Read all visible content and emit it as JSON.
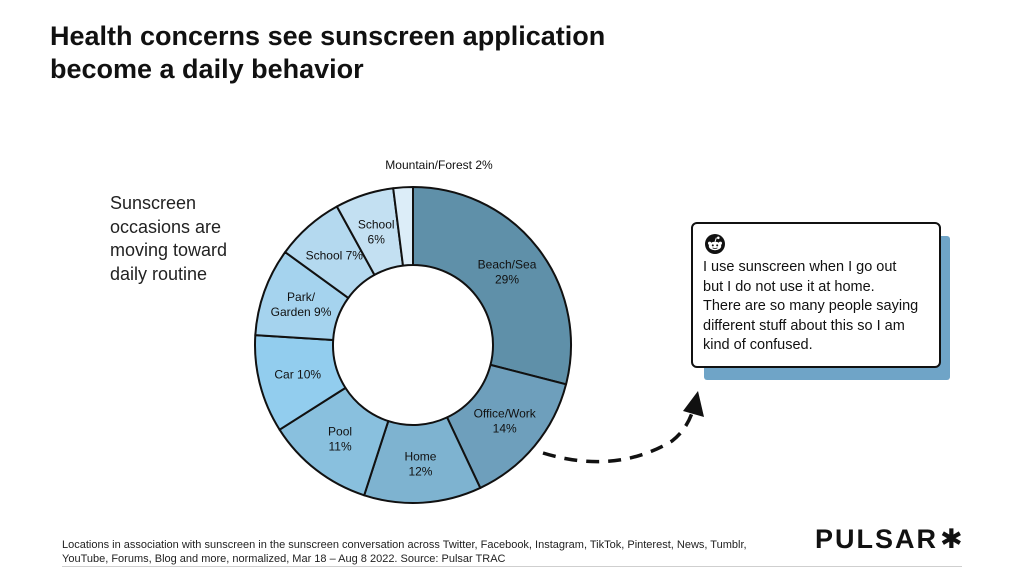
{
  "title": {
    "line1": "Health concerns see sunscreen application",
    "line2": "become a daily behavior"
  },
  "side_text": [
    "Sunscreen",
    "occasions are",
    "moving toward",
    "daily routine"
  ],
  "callout": {
    "icon": "reddit-icon",
    "lines": [
      "I use sunscreen when I go out",
      "but I do not use it at home.",
      "There are so many people saying",
      "different stuff about this so I am",
      "kind of confused."
    ]
  },
  "footnote": {
    "lines": [
      "Locations in association with sunscreen in the sunscreen conversation across Twitter, Facebook, Instagram, TikTok, Pinterest, News, Tumblr,",
      "YouTube, Forums, Blog and more, normalized, Mar 18 – Aug 8 2022. Source: Pulsar TRAC"
    ]
  },
  "logo": {
    "text": "PULSAR",
    "mark": "✱"
  },
  "chart_data": {
    "type": "pie",
    "title": "",
    "unit": "%",
    "slices": [
      {
        "label": "Beach/Sea",
        "value": 29,
        "label_lines": [
          "Beach/Sea",
          "29%"
        ],
        "color": "#5f90a9"
      },
      {
        "label": "Office/Work",
        "value": 14,
        "label_lines": [
          "Office/Work",
          "14%"
        ],
        "color": "#6e9fbc"
      },
      {
        "label": "Home",
        "value": 12,
        "label_lines": [
          "Home",
          "12%"
        ],
        "color": "#7eb3d0"
      },
      {
        "label": "Pool",
        "value": 11,
        "label_lines": [
          "Pool",
          "11%"
        ],
        "color": "#89c0de"
      },
      {
        "label": "Car",
        "value": 10,
        "label_lines": [
          "Car 10%"
        ],
        "color": "#92cdee"
      },
      {
        "label": "Park/Garden",
        "value": 9,
        "label_lines": [
          "Park/",
          "Garden 9%"
        ],
        "color": "#a5d3ee"
      },
      {
        "label": "School",
        "value": 7,
        "label_lines": [
          "School 7%"
        ],
        "color": "#b4d9ef"
      },
      {
        "label": "School",
        "value": 6,
        "label_lines": [
          "School",
          "6%"
        ],
        "color": "#c3e0f2"
      },
      {
        "label": "Mountain/Forest",
        "value": 2,
        "label_lines": [
          "Mountain/Forest 2%"
        ],
        "color": "#dcedf8"
      }
    ],
    "colors": {
      "stroke": "#111111",
      "arrow": "#111111",
      "callout_shadow": "#6fa4c7"
    }
  }
}
